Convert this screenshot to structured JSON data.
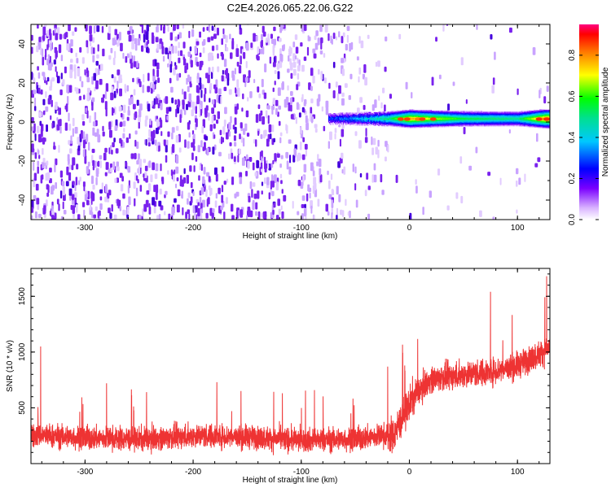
{
  "title": "C2E4.2026.065.22.06.G22",
  "chart_data": [
    {
      "type": "heatmap",
      "xlabel": "Height of straight line (km)",
      "ylabel": "Frequency (Hz)",
      "xlim": [
        -350,
        130
      ],
      "ylim": [
        -50,
        50
      ],
      "xticks": [
        -300,
        -200,
        -100,
        0,
        100
      ],
      "yticks": [
        -40,
        -20,
        0,
        20,
        40
      ],
      "colorbar": {
        "label": "Normalized spectral amplitude",
        "range": [
          0,
          0.95
        ],
        "ticks": [
          0.0,
          0.2,
          0.4,
          0.6,
          0.8
        ]
      },
      "signal_band": {
        "x_start": -75,
        "x_end": 130,
        "center_freq": 1.5,
        "description_points": [
          {
            "x": -75,
            "amp": 0.3
          },
          {
            "x": -50,
            "amp": 0.4
          },
          {
            "x": -20,
            "amp": 0.55
          },
          {
            "x": 0,
            "amp": 0.85
          },
          {
            "x": 50,
            "amp": 0.6
          },
          {
            "x": 100,
            "amp": 0.55
          },
          {
            "x": 125,
            "amp": 0.9
          }
        ]
      }
    },
    {
      "type": "line",
      "xlabel": "Height of straight line (km)",
      "ylabel": "SNR (10 * v/v)",
      "xlim": [
        -350,
        130
      ],
      "ylim": [
        0,
        1750
      ],
      "xticks": [
        -300,
        -200,
        -100,
        0,
        100
      ],
      "yticks": [
        500,
        1000,
        1500
      ],
      "color": "#ee3333",
      "trend": {
        "x": [
          -350,
          -300,
          -250,
          -200,
          -150,
          -100,
          -50,
          -25,
          -15,
          -5,
          5,
          20,
          50,
          75,
          100,
          120,
          130
        ],
        "y": [
          260,
          230,
          220,
          250,
          240,
          210,
          220,
          250,
          250,
          440,
          620,
          760,
          800,
          820,
          880,
          980,
          1050
        ]
      },
      "spikes": [
        {
          "x": -341,
          "y": 1050
        },
        {
          "x": -280,
          "y": 720
        },
        {
          "x": -178,
          "y": 730
        },
        {
          "x": -20,
          "y": 870
        },
        {
          "x": 75,
          "y": 1540
        },
        {
          "x": 127,
          "y": 1680
        }
      ]
    }
  ]
}
